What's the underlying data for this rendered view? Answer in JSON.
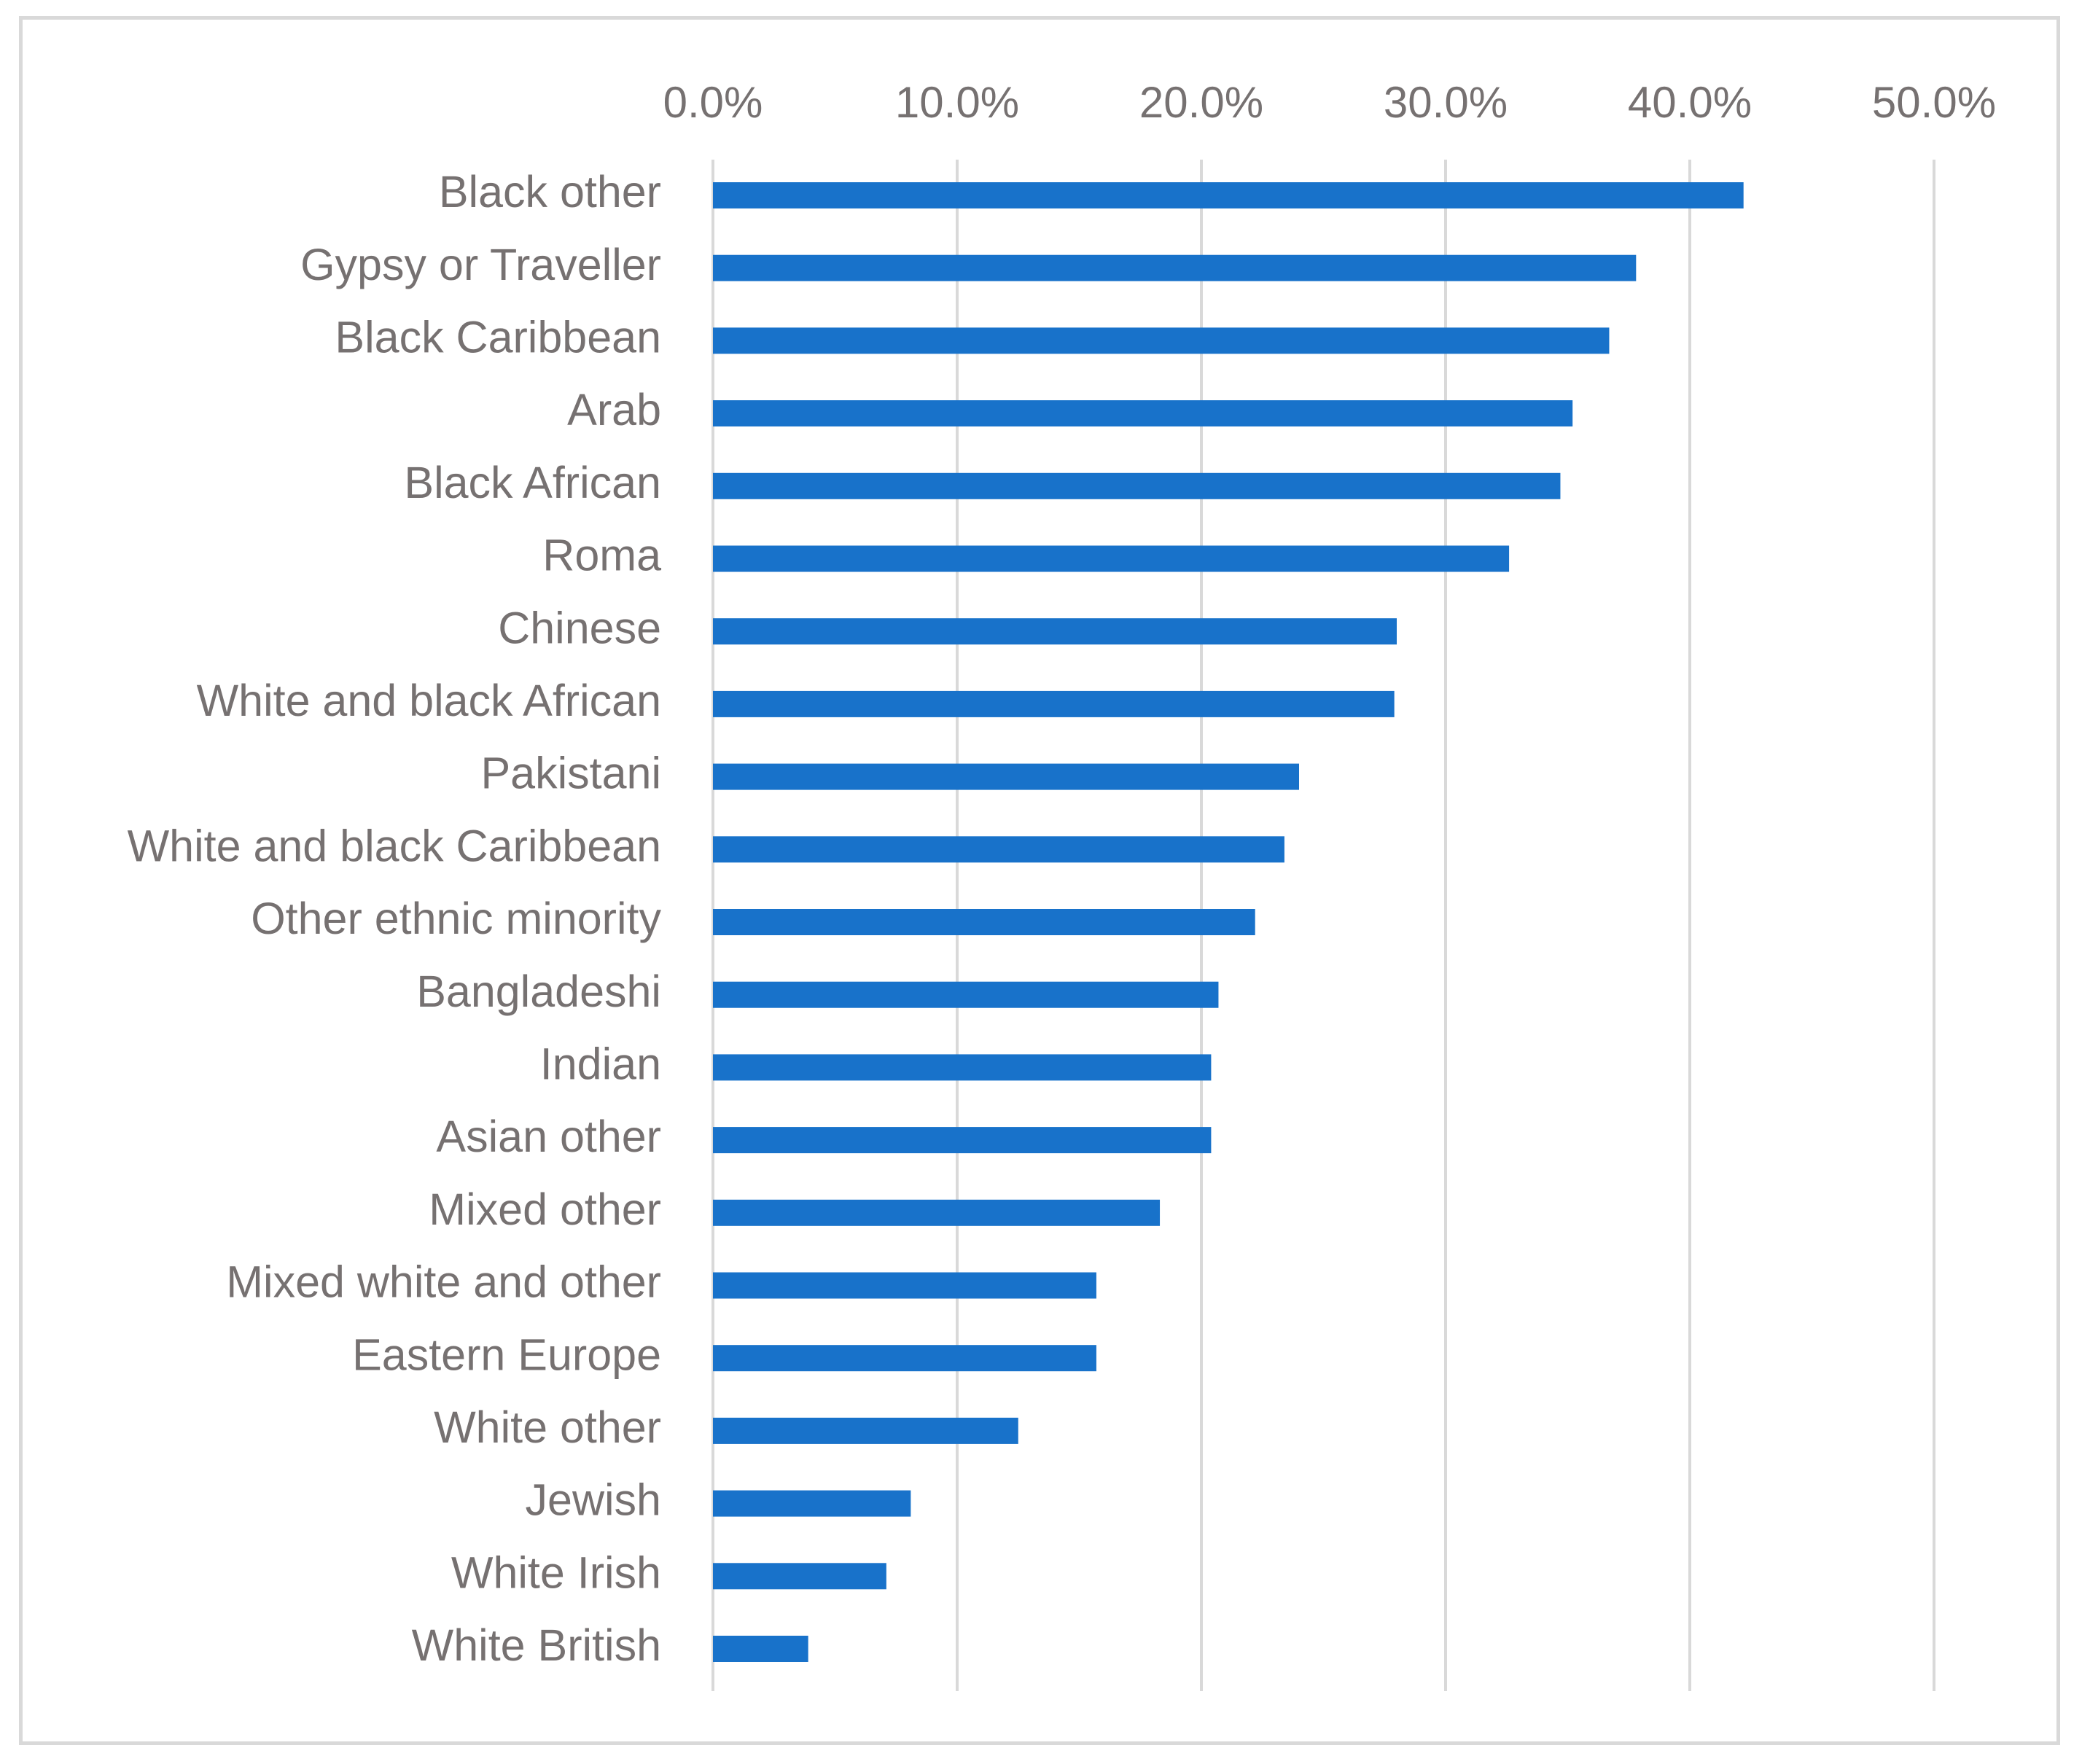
{
  "chart_data": {
    "type": "bar",
    "orientation": "horizontal",
    "title": "",
    "xlabel": "",
    "ylabel": "",
    "xlim": [
      0,
      50
    ],
    "x_ticks": [
      0,
      10,
      20,
      30,
      40,
      50
    ],
    "x_tick_labels": [
      "0.0%",
      "10.0%",
      "20.0%",
      "30.0%",
      "40.0%",
      "50.0%"
    ],
    "x_axis_position": "top",
    "grid": true,
    "categories": [
      "Black other",
      "Gypsy or Traveller",
      "Black Caribbean",
      "Arab",
      "Black African",
      "Roma",
      "Chinese",
      "White and black African",
      "Pakistani",
      "White and black Caribbean",
      "Other ethnic minority",
      "Bangladeshi",
      "Indian",
      "Asian other",
      "Mixed other",
      "Mixed white and other",
      "Eastern Europe",
      "White other",
      "Jewish",
      "White Irish",
      "White British"
    ],
    "values": [
      42.2,
      37.8,
      36.7,
      35.2,
      34.7,
      32.6,
      28.0,
      27.9,
      24.0,
      23.4,
      22.2,
      20.7,
      20.4,
      20.4,
      18.3,
      15.7,
      15.7,
      12.5,
      8.1,
      7.1,
      3.9
    ],
    "bar_color": "#1872ca",
    "grid_color": "#d9d9d9",
    "text_color": "#767171"
  }
}
